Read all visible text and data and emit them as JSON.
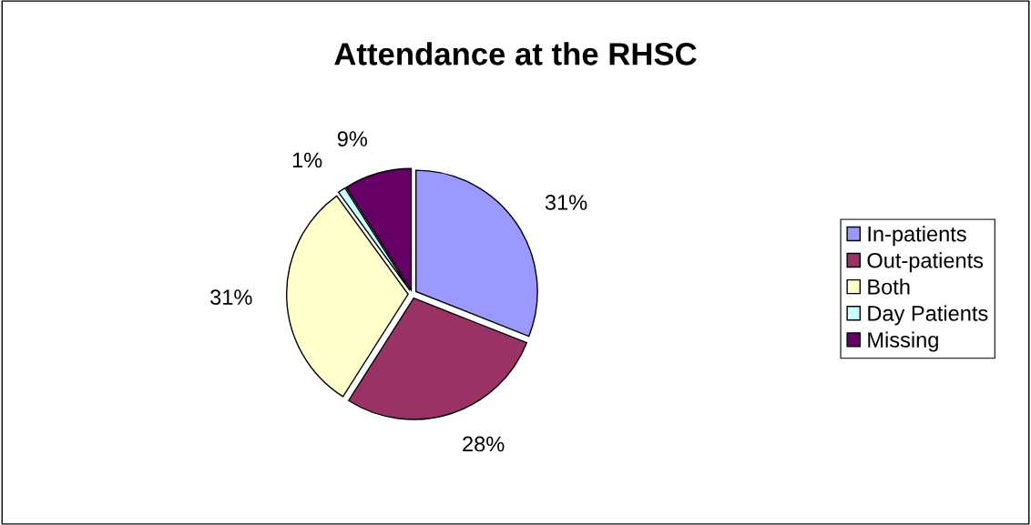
{
  "chart_data": {
    "type": "pie",
    "title": "Attendance at the RHSC",
    "categories": [
      "In-patients",
      "Out-patients",
      "Both",
      "Day Patients",
      "Missing"
    ],
    "values": [
      31,
      28,
      31,
      1,
      9
    ],
    "value_labels": [
      "31%",
      "28%",
      "31%",
      "1%",
      "9%"
    ],
    "colors": [
      "#9999ff",
      "#993366",
      "#ffffcc",
      "#ccffff",
      "#660066"
    ],
    "legend": "right"
  }
}
